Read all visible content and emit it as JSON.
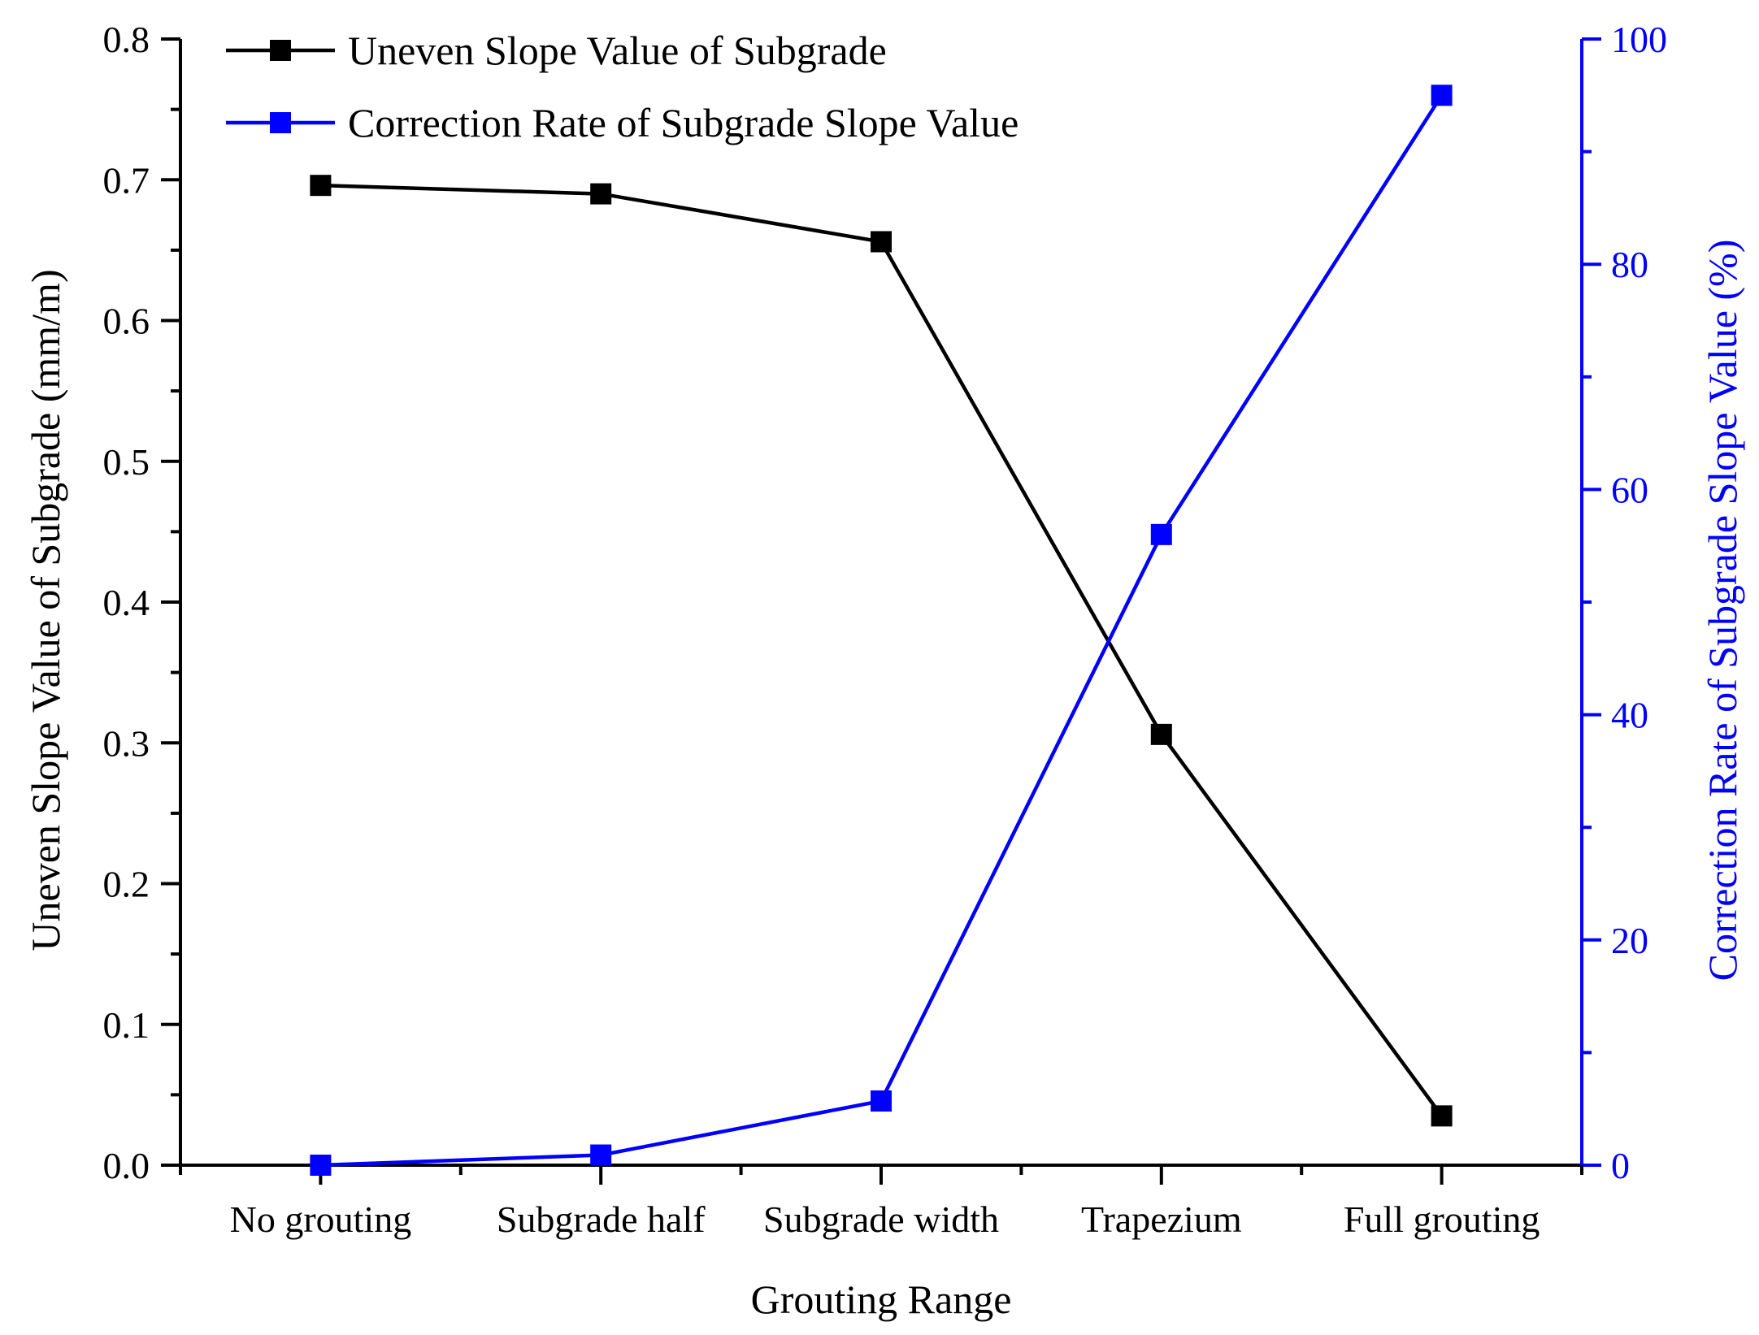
{
  "chart_data": {
    "type": "line",
    "xlabel": "Grouting Range",
    "ylabel_left": "Uneven Slope Value of Subgrade (mm/m)",
    "ylabel_right": "Correction Rate of Subgrade Slope Value (%)",
    "categories": [
      "No grouting",
      "Subgrade half",
      "Subgrade width",
      "Trapezium",
      "Full grouting"
    ],
    "y_left": {
      "lim": [
        0,
        0.8
      ],
      "ticks": [
        0,
        0.1,
        0.2,
        0.3,
        0.4,
        0.5,
        0.6,
        0.7,
        0.8
      ],
      "tick_labels": [
        "0.0",
        "0.1",
        "0.2",
        "0.3",
        "0.4",
        "0.5",
        "0.6",
        "0.7",
        "0.8"
      ]
    },
    "y_right": {
      "lim": [
        0,
        100
      ],
      "ticks": [
        0,
        20,
        40,
        60,
        80,
        100
      ],
      "tick_labels": [
        "0",
        "20",
        "40",
        "60",
        "80",
        "100"
      ]
    },
    "series": [
      {
        "name": "Uneven Slope Value of Subgrade",
        "axis": "left",
        "color": "#000000",
        "marker": "square",
        "values": [
          0.696,
          0.69,
          0.656,
          0.306,
          0.035
        ]
      },
      {
        "name": "Correction Rate of Subgrade Slope Value",
        "axis": "right",
        "color": "#0000ff",
        "marker": "square",
        "values": [
          0,
          0.9,
          5.7,
          56.0,
          95.0
        ]
      }
    ],
    "legend_position": "top-left",
    "grid": false
  }
}
